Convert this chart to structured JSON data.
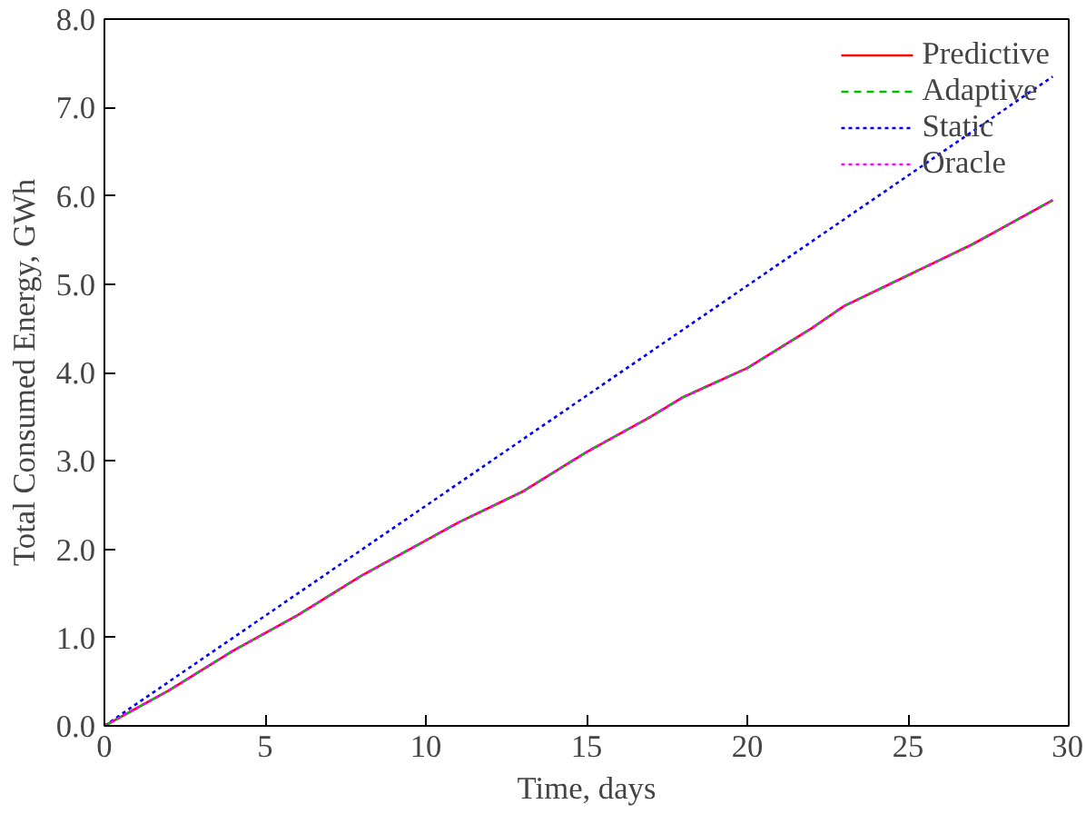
{
  "chart_data": {
    "type": "line",
    "xlabel": "Time, days",
    "ylabel": "Total Consumed Energy, GWh",
    "xlim": [
      0,
      30
    ],
    "ylim": [
      0,
      8
    ],
    "xticks": [
      0,
      5,
      10,
      15,
      20,
      25,
      30
    ],
    "yticks": [
      {
        "value": 0,
        "label": "0.0"
      },
      {
        "value": 1,
        "label": "1.0"
      },
      {
        "value": 2,
        "label": "2.0"
      },
      {
        "value": 3,
        "label": "3.0"
      },
      {
        "value": 4,
        "label": "4.0"
      },
      {
        "value": 5,
        "label": "5.0"
      },
      {
        "value": 6,
        "label": "6.0"
      },
      {
        "value": 7,
        "label": "7.0"
      },
      {
        "value": 8,
        "label": "8.0"
      }
    ],
    "x": [
      0,
      2,
      4,
      6,
      8,
      10,
      11,
      13,
      15,
      17,
      18,
      20,
      22,
      23,
      25,
      27,
      29.5
    ],
    "legend": "top right",
    "grid": false,
    "series": [
      {
        "name": "Predictive",
        "color": "#ff0000",
        "line_style": "solid",
        "values": [
          0,
          0.4,
          0.85,
          1.25,
          1.7,
          2.1,
          2.3,
          2.65,
          3.1,
          3.5,
          3.72,
          4.05,
          4.5,
          4.75,
          5.1,
          5.45,
          5.95
        ]
      },
      {
        "name": "Adaptive",
        "color": "#00c000",
        "line_style": "dashed",
        "values": [
          0,
          0.4,
          0.85,
          1.25,
          1.7,
          2.1,
          2.3,
          2.65,
          3.1,
          3.5,
          3.72,
          4.05,
          4.5,
          4.75,
          5.1,
          5.45,
          5.95
        ]
      },
      {
        "name": "Static",
        "color": "#0000ff",
        "line_style": "dotted",
        "x": [
          0,
          29.5
        ],
        "values": [
          0,
          7.35
        ]
      },
      {
        "name": "Oracle",
        "color": "#ff00ff",
        "line_style": "dotted",
        "values": [
          0,
          0.4,
          0.85,
          1.25,
          1.7,
          2.1,
          2.3,
          2.65,
          3.1,
          3.5,
          3.72,
          4.05,
          4.5,
          4.75,
          5.1,
          5.45,
          5.95
        ]
      }
    ]
  }
}
